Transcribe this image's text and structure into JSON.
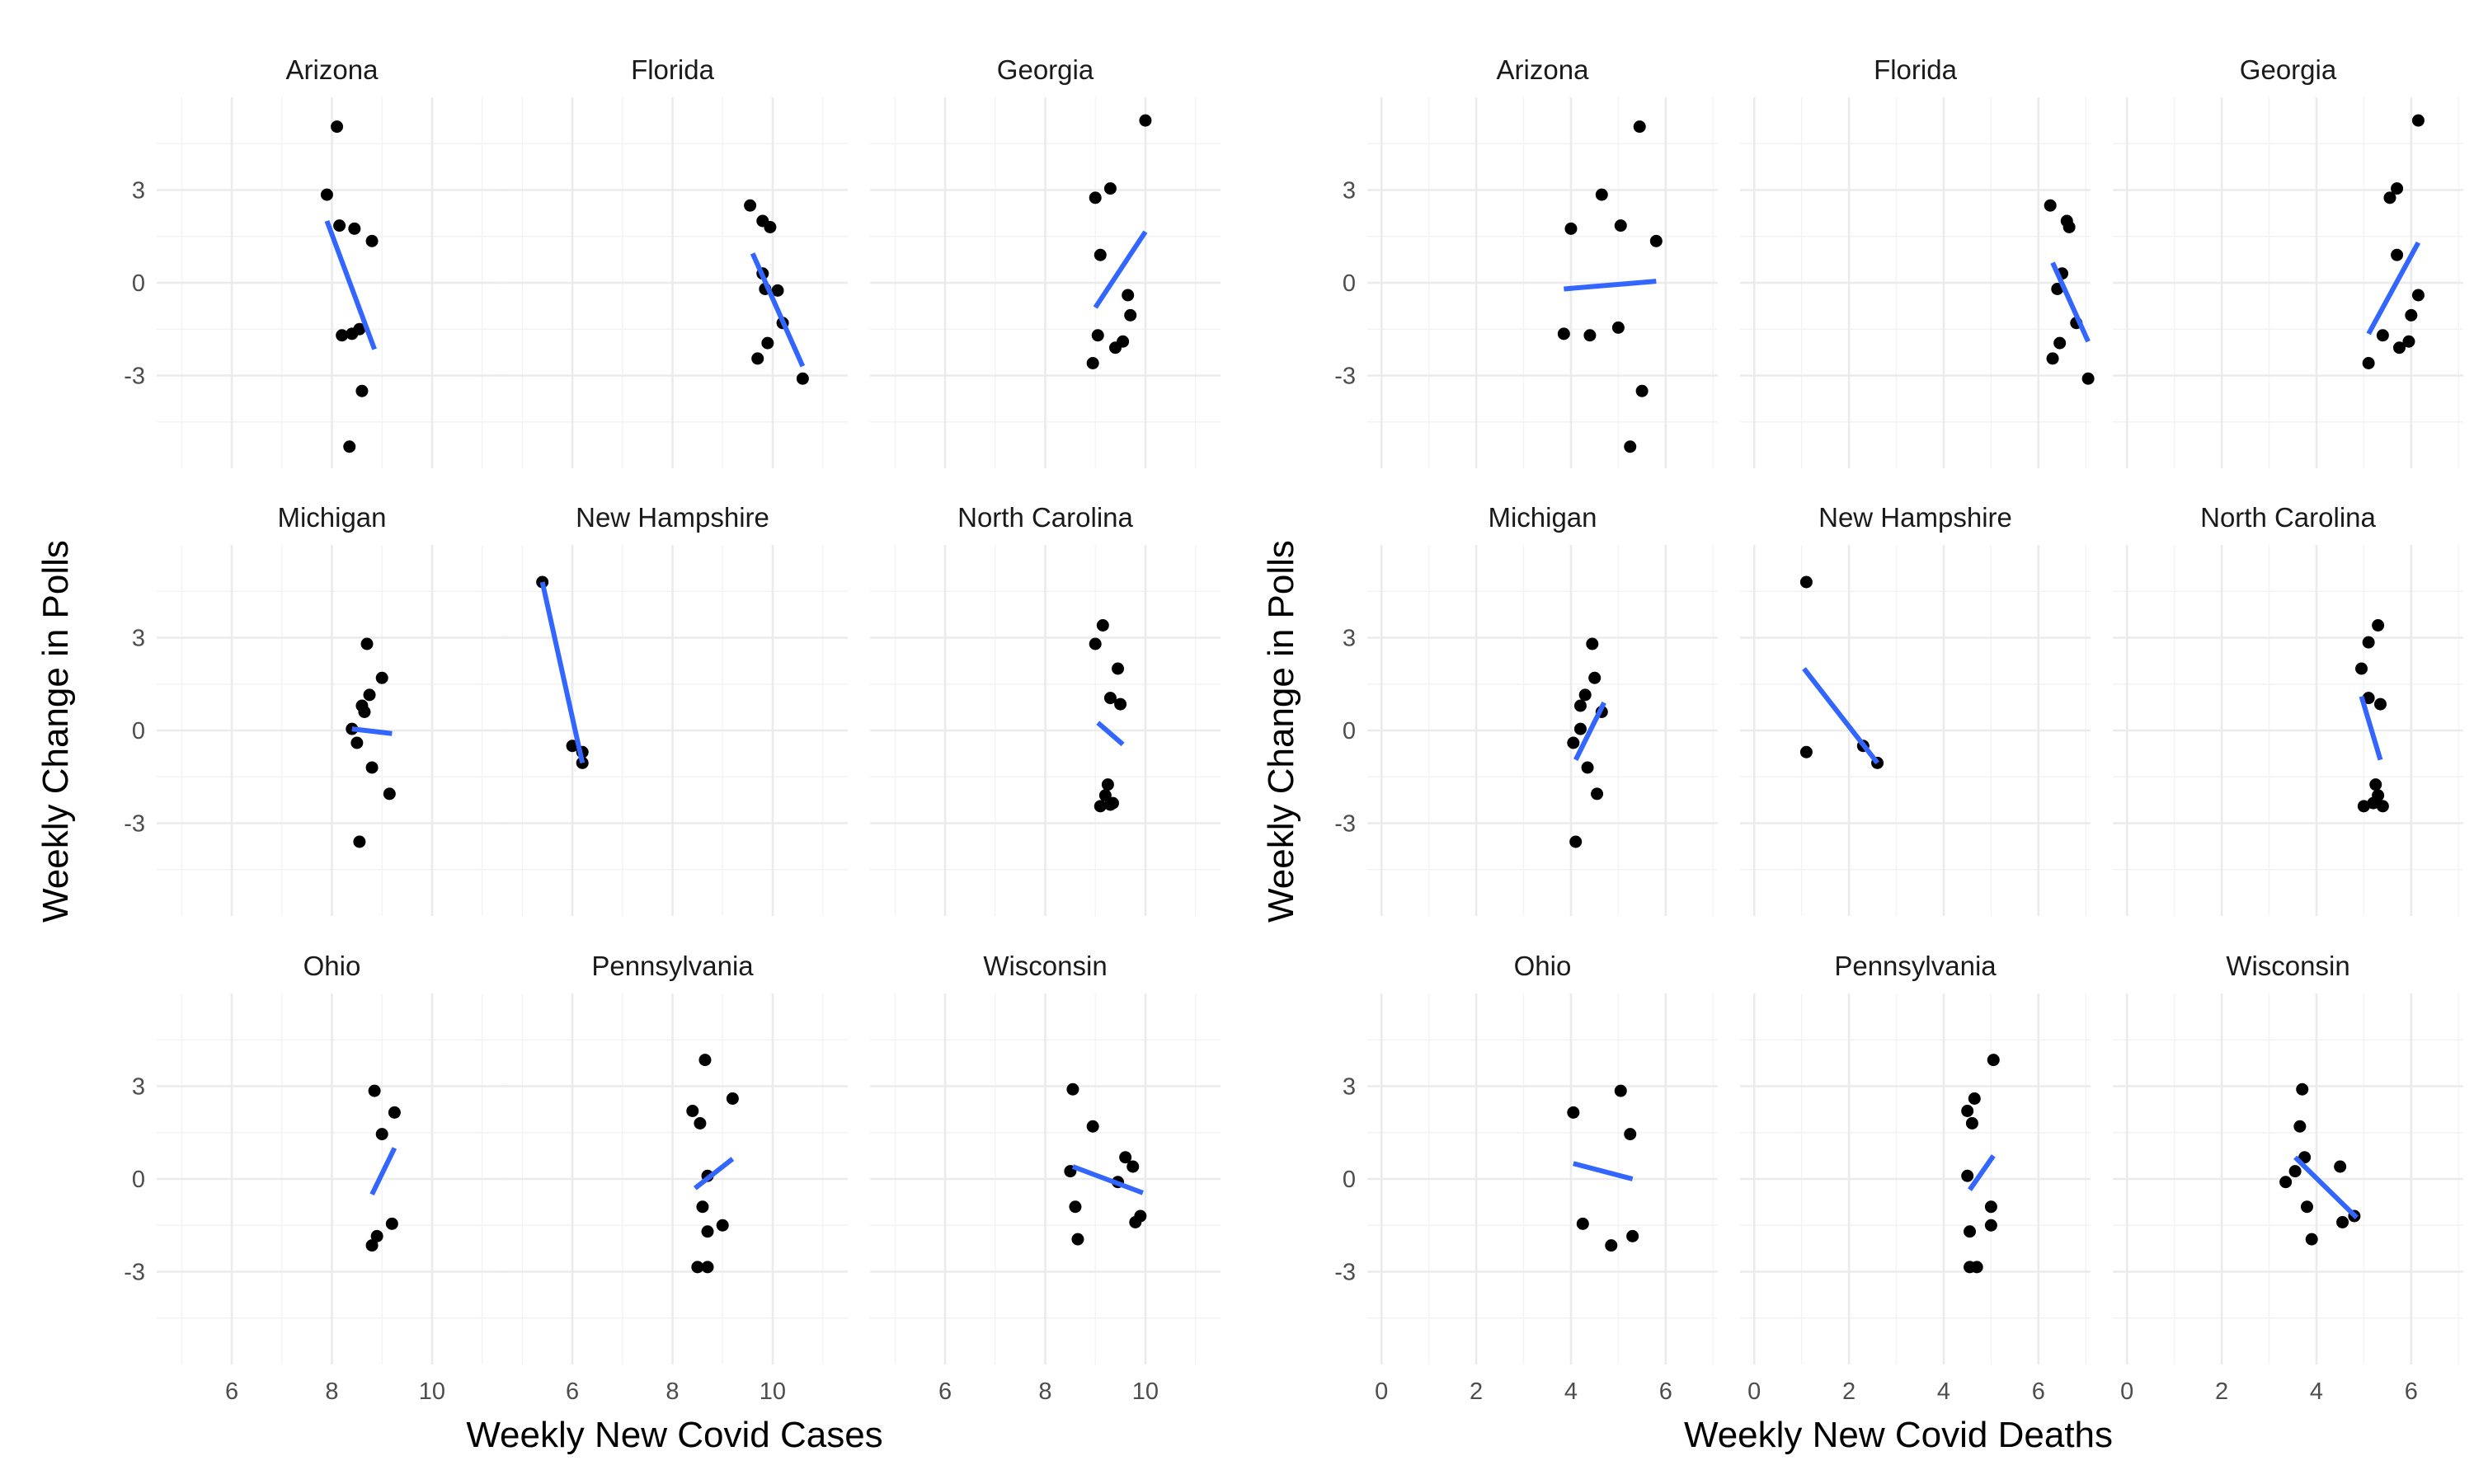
{
  "colors": {
    "background": "#ffffff",
    "grid_major": "#ebebeb",
    "grid_minor": "#f3f3f3",
    "point": "#000000",
    "trend_line": "#3366ff",
    "text": "#1a1a1a",
    "tick_text": "#4d4d4d"
  },
  "chart_data": [
    {
      "type": "scatter",
      "xlabel": "Weekly New Covid Cases",
      "ylabel": "Weekly Change in Polls",
      "xlim": [
        4.5,
        11.5
      ],
      "ylim": [
        -6,
        6
      ],
      "xticks": [
        6,
        8,
        10
      ],
      "yticks": [
        -3,
        0,
        3
      ],
      "grid": true,
      "trend": "linear fit per panel",
      "panels": [
        {
          "state": "Arizona",
          "points": [
            [
              7.9,
              2.85
            ],
            [
              8.1,
              5.05
            ],
            [
              8.15,
              1.85
            ],
            [
              8.2,
              -1.7
            ],
            [
              8.4,
              -1.65
            ],
            [
              8.45,
              1.75
            ],
            [
              8.55,
              -1.5
            ],
            [
              8.6,
              -3.5
            ],
            [
              8.8,
              1.35
            ],
            [
              8.35,
              -5.3
            ]
          ],
          "fit": [
            [
              7.9,
              2.0
            ],
            [
              8.85,
              -2.15
            ]
          ]
        },
        {
          "state": "Florida",
          "points": [
            [
              9.55,
              2.5
            ],
            [
              9.7,
              -2.45
            ],
            [
              9.8,
              2.0
            ],
            [
              9.8,
              0.3
            ],
            [
              9.85,
              -0.2
            ],
            [
              9.9,
              -1.95
            ],
            [
              9.95,
              1.8
            ],
            [
              10.1,
              -0.25
            ],
            [
              10.2,
              -1.3
            ],
            [
              10.6,
              -3.1
            ]
          ],
          "fit": [
            [
              9.6,
              0.95
            ],
            [
              10.6,
              -2.7
            ]
          ]
        },
        {
          "state": "Georgia",
          "points": [
            [
              8.95,
              -2.6
            ],
            [
              9.0,
              2.75
            ],
            [
              9.05,
              -1.7
            ],
            [
              9.1,
              0.9
            ],
            [
              9.3,
              3.05
            ],
            [
              9.4,
              -2.1
            ],
            [
              9.55,
              -1.9
            ],
            [
              9.65,
              -0.4
            ],
            [
              9.7,
              -1.05
            ],
            [
              10.0,
              5.25
            ]
          ],
          "fit": [
            [
              9.0,
              -0.8
            ],
            [
              10.0,
              1.65
            ]
          ]
        },
        {
          "state": "Michigan",
          "points": [
            [
              8.4,
              0.05
            ],
            [
              8.5,
              -0.4
            ],
            [
              8.55,
              -3.6
            ],
            [
              8.6,
              0.8
            ],
            [
              8.65,
              0.6
            ],
            [
              8.7,
              2.8
            ],
            [
              8.75,
              1.15
            ],
            [
              8.8,
              -1.2
            ],
            [
              9.0,
              1.7
            ],
            [
              9.15,
              -2.05
            ]
          ],
          "fit": [
            [
              8.4,
              0.05
            ],
            [
              9.2,
              -0.1
            ]
          ]
        },
        {
          "state": "New Hampshire",
          "points": [
            [
              5.4,
              4.8
            ],
            [
              6.0,
              -0.5
            ],
            [
              6.2,
              -0.7
            ],
            [
              6.2,
              -1.05
            ]
          ],
          "fit": [
            [
              5.4,
              4.8
            ],
            [
              6.2,
              -1.05
            ]
          ]
        },
        {
          "state": "North Carolina",
          "points": [
            [
              9.0,
              2.8
            ],
            [
              9.1,
              -2.45
            ],
            [
              9.15,
              3.4
            ],
            [
              9.2,
              -2.1
            ],
            [
              9.25,
              -1.75
            ],
            [
              9.3,
              1.05
            ],
            [
              9.3,
              -2.4
            ],
            [
              9.35,
              -2.35
            ],
            [
              9.45,
              2.0
            ],
            [
              9.5,
              0.85
            ]
          ],
          "fit": [
            [
              9.05,
              0.25
            ],
            [
              9.55,
              -0.45
            ]
          ]
        },
        {
          "state": "Ohio",
          "points": [
            [
              8.8,
              -2.15
            ],
            [
              8.85,
              2.85
            ],
            [
              8.9,
              -1.85
            ],
            [
              9.0,
              1.45
            ],
            [
              9.2,
              -1.45
            ],
            [
              9.25,
              2.15
            ]
          ],
          "fit": [
            [
              8.8,
              -0.5
            ],
            [
              9.25,
              1.0
            ]
          ]
        },
        {
          "state": "Pennsylvania",
          "points": [
            [
              8.4,
              2.2
            ],
            [
              8.5,
              -2.85
            ],
            [
              8.55,
              1.8
            ],
            [
              8.6,
              -0.9
            ],
            [
              8.65,
              3.85
            ],
            [
              8.7,
              0.1
            ],
            [
              8.7,
              -2.85
            ],
            [
              8.7,
              -1.7
            ],
            [
              9.0,
              -1.5
            ],
            [
              9.2,
              2.6
            ]
          ],
          "fit": [
            [
              8.45,
              -0.3
            ],
            [
              9.2,
              0.65
            ]
          ]
        },
        {
          "state": "Wisconsin",
          "points": [
            [
              8.5,
              0.25
            ],
            [
              8.55,
              2.9
            ],
            [
              8.6,
              -0.9
            ],
            [
              8.65,
              -1.95
            ],
            [
              8.95,
              1.7
            ],
            [
              9.45,
              -0.1
            ],
            [
              9.6,
              0.7
            ],
            [
              9.75,
              0.4
            ],
            [
              9.8,
              -1.4
            ],
            [
              9.9,
              -1.2
            ]
          ],
          "fit": [
            [
              8.55,
              0.4
            ],
            [
              9.95,
              -0.45
            ]
          ]
        }
      ]
    },
    {
      "type": "scatter",
      "xlabel": "Weekly New Covid Deaths",
      "ylabel": "Weekly Change in Polls",
      "xlim": [
        -0.3,
        7.1
      ],
      "ylim": [
        -6,
        6
      ],
      "xticks": [
        0,
        2,
        4,
        6
      ],
      "yticks": [
        -3,
        0,
        3
      ],
      "grid": true,
      "trend": "linear fit per panel",
      "panels": [
        {
          "state": "Arizona",
          "points": [
            [
              3.85,
              -1.65
            ],
            [
              4.0,
              1.75
            ],
            [
              4.4,
              -1.7
            ],
            [
              4.65,
              2.85
            ],
            [
              5.0,
              -1.45
            ],
            [
              5.05,
              1.85
            ],
            [
              5.25,
              -5.3
            ],
            [
              5.45,
              5.05
            ],
            [
              5.5,
              -3.5
            ],
            [
              5.8,
              1.35
            ]
          ],
          "fit": [
            [
              3.85,
              -0.2
            ],
            [
              5.8,
              0.05
            ]
          ]
        },
        {
          "state": "Florida",
          "points": [
            [
              6.25,
              2.5
            ],
            [
              6.3,
              -2.45
            ],
            [
              6.4,
              -0.2
            ],
            [
              6.45,
              -1.95
            ],
            [
              6.5,
              0.3
            ],
            [
              6.6,
              2.0
            ],
            [
              6.65,
              1.8
            ],
            [
              6.8,
              -1.3
            ],
            [
              7.05,
              -3.1
            ]
          ],
          "fit": [
            [
              6.3,
              0.65
            ],
            [
              7.05,
              -1.9
            ]
          ]
        },
        {
          "state": "Georgia",
          "points": [
            [
              5.1,
              -2.6
            ],
            [
              5.4,
              -1.7
            ],
            [
              5.55,
              2.75
            ],
            [
              5.7,
              3.05
            ],
            [
              5.75,
              -2.1
            ],
            [
              5.7,
              0.9
            ],
            [
              6.0,
              -1.05
            ],
            [
              5.95,
              -1.9
            ],
            [
              6.15,
              -0.4
            ],
            [
              6.15,
              5.25
            ]
          ],
          "fit": [
            [
              5.1,
              -1.65
            ],
            [
              6.15,
              1.3
            ]
          ]
        },
        {
          "state": "Michigan",
          "points": [
            [
              4.05,
              -0.4
            ],
            [
              4.1,
              -3.6
            ],
            [
              4.2,
              0.8
            ],
            [
              4.2,
              0.05
            ],
            [
              4.3,
              1.15
            ],
            [
              4.35,
              -1.2
            ],
            [
              4.45,
              2.8
            ],
            [
              4.5,
              1.7
            ],
            [
              4.55,
              -2.05
            ],
            [
              4.65,
              0.6
            ]
          ],
          "fit": [
            [
              4.1,
              -0.95
            ],
            [
              4.7,
              0.9
            ]
          ]
        },
        {
          "state": "New Hampshire",
          "points": [
            [
              1.1,
              4.8
            ],
            [
              1.1,
              -0.7
            ],
            [
              2.3,
              -0.5
            ],
            [
              2.6,
              -1.05
            ]
          ],
          "fit": [
            [
              1.05,
              2.0
            ],
            [
              2.6,
              -1.05
            ]
          ]
        },
        {
          "state": "North Carolina",
          "points": [
            [
              4.95,
              2.0
            ],
            [
              5.0,
              -2.45
            ],
            [
              5.1,
              2.85
            ],
            [
              5.1,
              1.05
            ],
            [
              5.2,
              -2.35
            ],
            [
              5.25,
              -1.75
            ],
            [
              5.3,
              -2.1
            ],
            [
              5.3,
              3.4
            ],
            [
              5.35,
              0.85
            ],
            [
              5.4,
              -2.45
            ]
          ],
          "fit": [
            [
              4.95,
              1.1
            ],
            [
              5.35,
              -0.95
            ]
          ]
        },
        {
          "state": "Ohio",
          "points": [
            [
              4.05,
              2.15
            ],
            [
              4.25,
              -1.45
            ],
            [
              4.85,
              -2.15
            ],
            [
              5.05,
              2.85
            ],
            [
              5.25,
              1.45
            ],
            [
              5.3,
              -1.85
            ]
          ],
          "fit": [
            [
              4.05,
              0.5
            ],
            [
              5.3,
              0.0
            ]
          ]
        },
        {
          "state": "Pennsylvania",
          "points": [
            [
              4.5,
              2.2
            ],
            [
              4.5,
              0.1
            ],
            [
              4.55,
              -2.85
            ],
            [
              4.55,
              -1.7
            ],
            [
              4.6,
              1.8
            ],
            [
              4.65,
              2.6
            ],
            [
              4.7,
              -2.85
            ],
            [
              5.0,
              -0.9
            ],
            [
              5.0,
              -1.5
            ],
            [
              5.05,
              3.85
            ]
          ],
          "fit": [
            [
              4.55,
              -0.35
            ],
            [
              5.05,
              0.75
            ]
          ]
        },
        {
          "state": "Wisconsin",
          "points": [
            [
              3.35,
              -0.1
            ],
            [
              3.55,
              0.25
            ],
            [
              3.65,
              1.7
            ],
            [
              3.7,
              2.9
            ],
            [
              3.75,
              0.7
            ],
            [
              3.8,
              -0.9
            ],
            [
              3.9,
              -1.95
            ],
            [
              4.5,
              0.4
            ],
            [
              4.55,
              -1.4
            ],
            [
              4.8,
              -1.2
            ]
          ],
          "fit": [
            [
              3.55,
              0.7
            ],
            [
              4.85,
              -1.25
            ]
          ]
        }
      ]
    }
  ]
}
